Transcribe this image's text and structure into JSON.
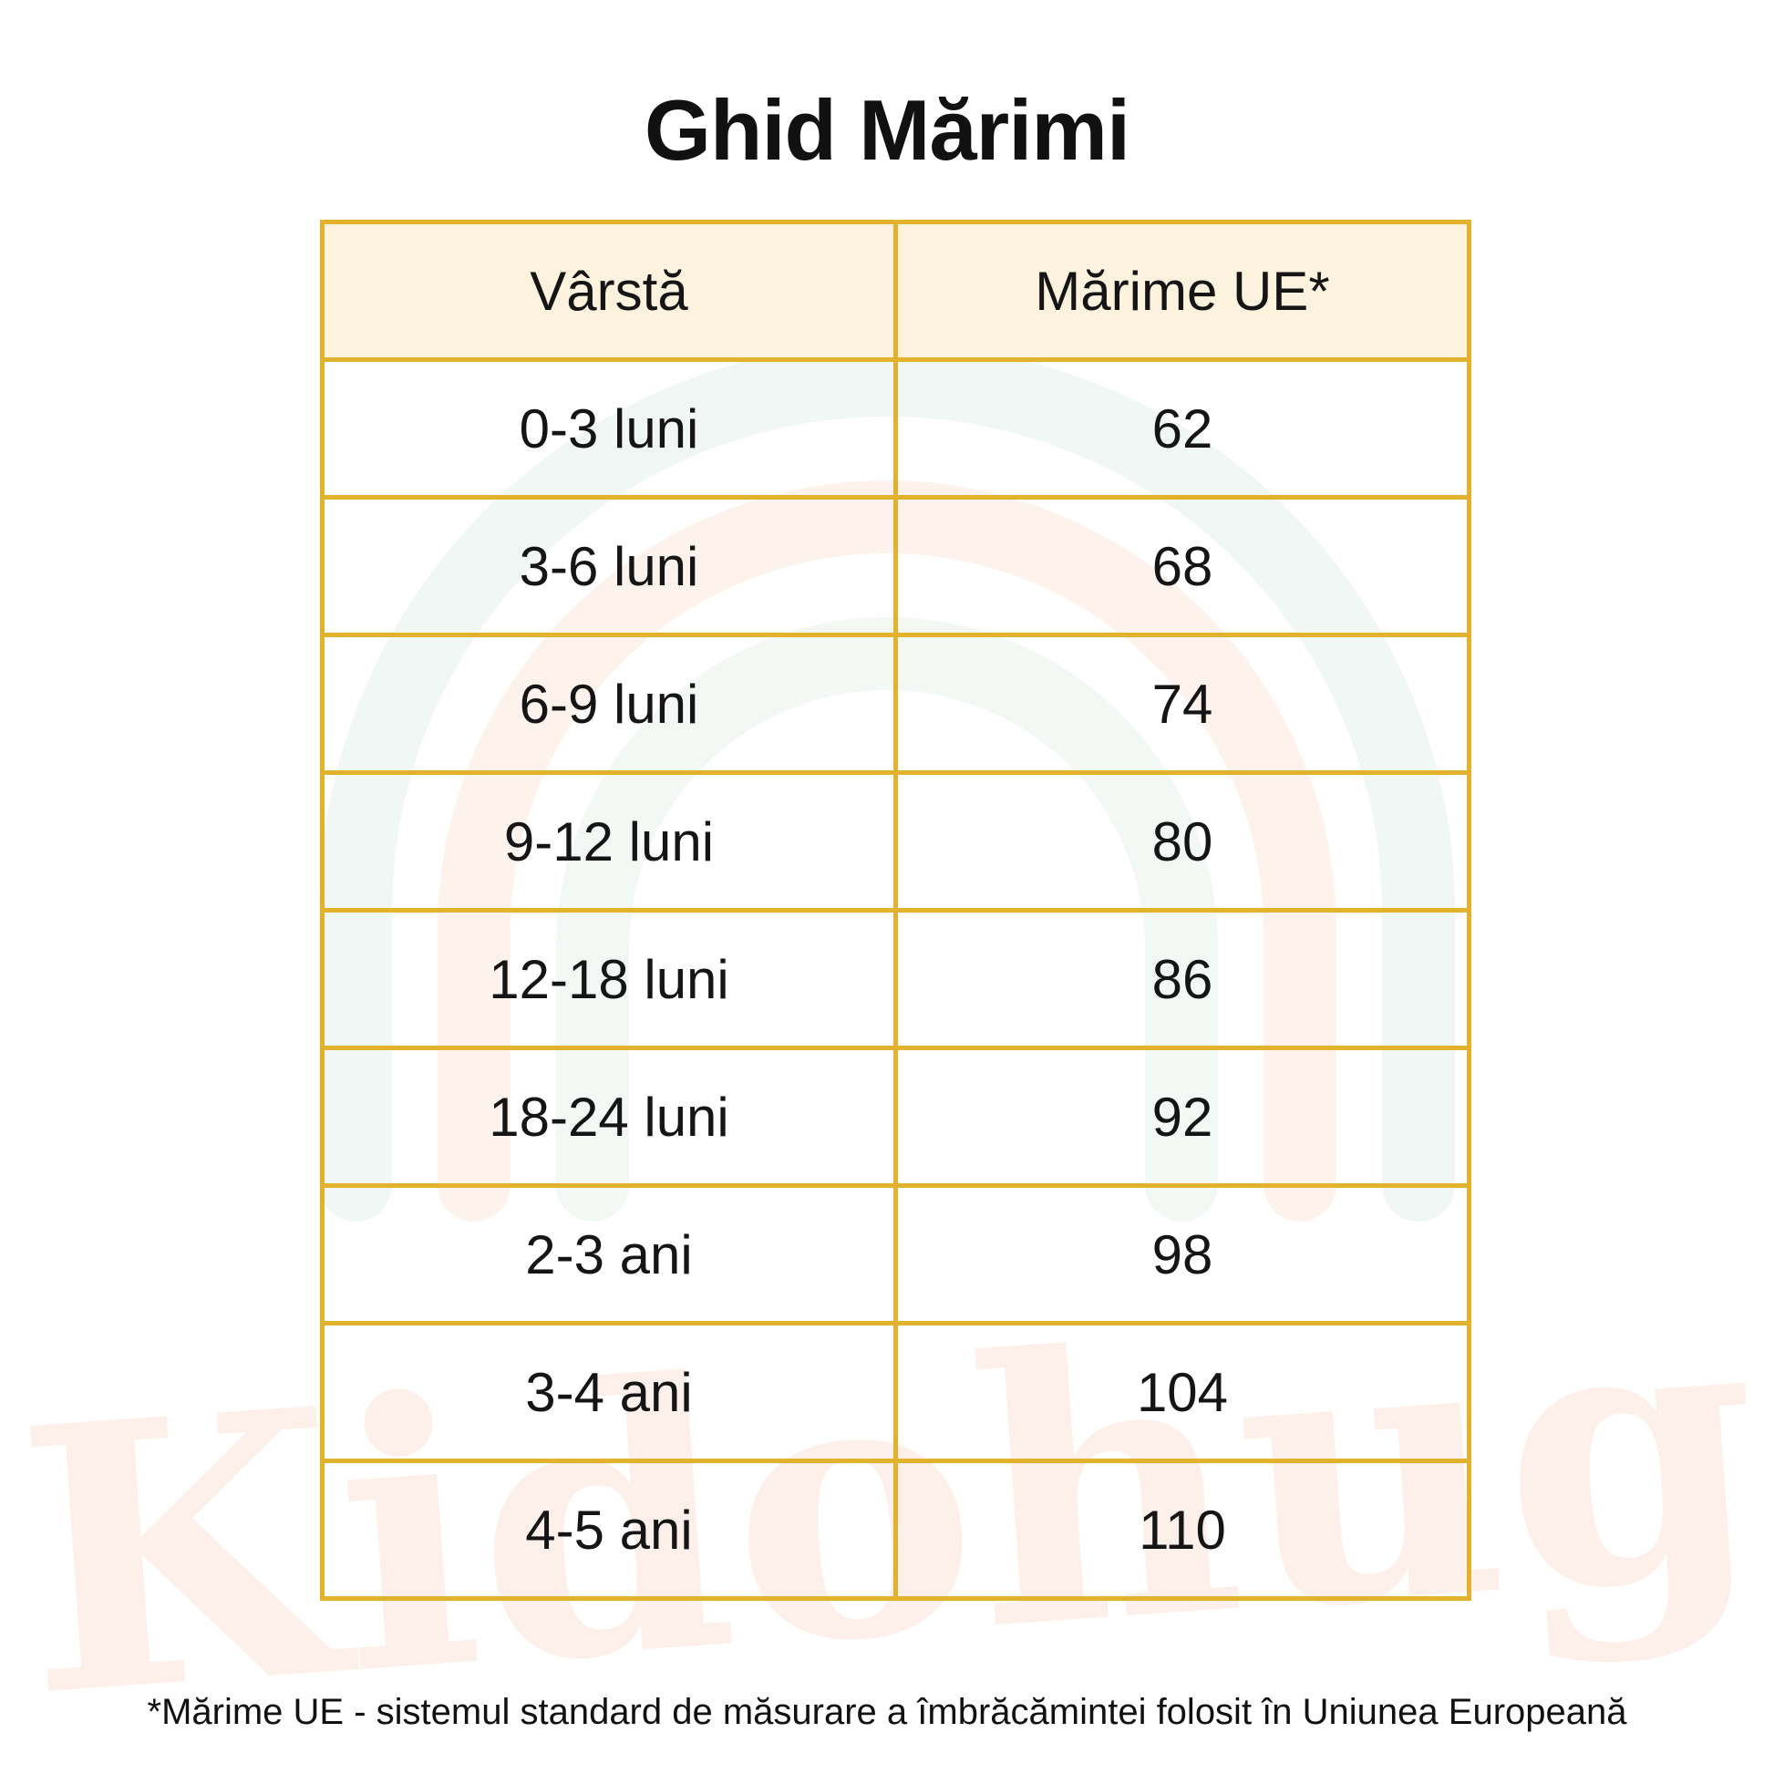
{
  "title": "Ghid Mărimi",
  "table": {
    "headers": [
      "Vârstă",
      "Mărime UE*"
    ],
    "rows": [
      [
        "0-3 luni",
        "62"
      ],
      [
        "3-6 luni",
        "68"
      ],
      [
        "6-9 luni",
        "74"
      ],
      [
        "9-12 luni",
        "80"
      ],
      [
        "12-18 luni",
        "86"
      ],
      [
        "18-24 luni",
        "92"
      ],
      [
        "2-3 ani",
        "98"
      ],
      [
        "3-4 ani",
        "104"
      ],
      [
        "4-5 ani",
        "110"
      ]
    ]
  },
  "footnote": "*Mărime UE - sistemul standard de măsurare a îmbrăcămintei folosit în Uniunea Europeană",
  "watermark": {
    "text": "Kidohug",
    "colors": {
      "text": "#fdf0ea",
      "arc_outer": "#f0f6f3",
      "arc_inner": "#fdf3ec",
      "border": "#e3b22d",
      "header_bg": "#fdf1dc"
    }
  }
}
